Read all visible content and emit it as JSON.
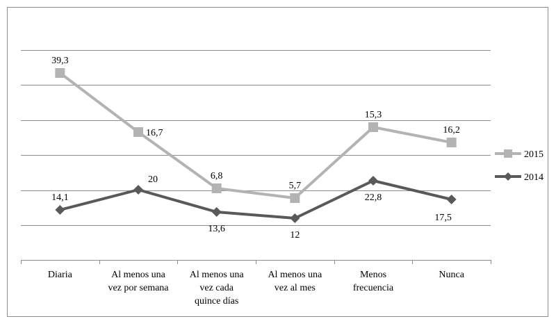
{
  "chart_data": {
    "type": "line",
    "categories": [
      [
        "Diaria"
      ],
      [
        "Al menos una",
        "vez por semana"
      ],
      [
        "Al menos una",
        "vez cada",
        "quince días"
      ],
      [
        "Al menos una",
        "vez al mes"
      ],
      [
        "Menos",
        "frecuencia"
      ],
      [
        "Nunca"
      ]
    ],
    "series": [
      {
        "name": "2015",
        "color": "#b3b3b3",
        "marker": "square",
        "values": [
          39.3,
          16.7,
          6.8,
          5.7,
          15.3,
          16.2
        ],
        "labels": [
          "39,3",
          "16,7",
          "6,8",
          "5,7",
          "15,3",
          "16,2"
        ],
        "label_position": [
          "above",
          "right",
          "above",
          "above",
          "above",
          "above"
        ]
      },
      {
        "name": "2014",
        "color": "#595959",
        "marker": "diamond",
        "values": [
          14.1,
          20,
          13.6,
          12,
          22.8,
          17.5
        ],
        "labels": [
          "14,1",
          "20",
          "13,6",
          "12",
          "22,8",
          "17,5"
        ],
        "label_position": [
          "above",
          "above-right",
          "below",
          "below",
          "below",
          "below-left"
        ]
      }
    ],
    "gridlines": true,
    "legend": {
      "position": "right"
    }
  }
}
